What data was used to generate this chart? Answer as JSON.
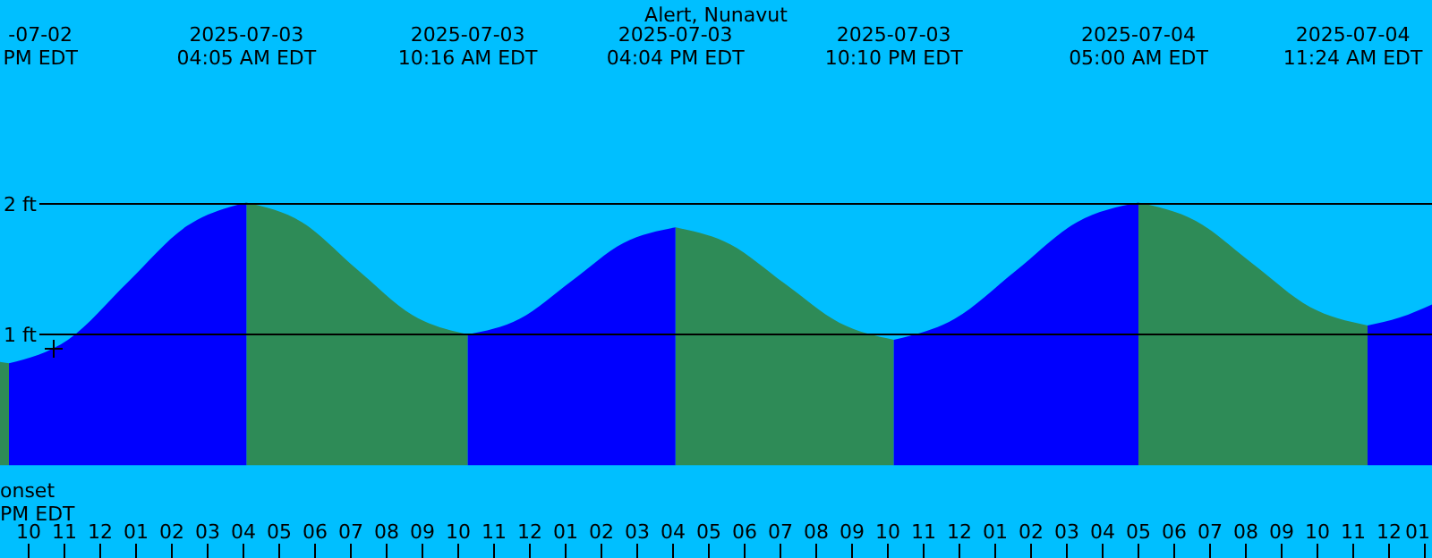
{
  "chart_data": {
    "type": "area",
    "title": "Alert, Nunavut",
    "xlim": [
      "2025-07-02T21:12",
      "2025-07-04T13:12"
    ],
    "ylim": [
      -0.71,
      3.56
    ],
    "yticks": [
      {
        "value": 1,
        "label": "1 ft"
      },
      {
        "value": 2,
        "label": "2 ft"
      }
    ],
    "xticks": [
      {
        "value": "2025-07-02T22:00",
        "label": "10"
      },
      {
        "value": "2025-07-02T23:00",
        "label": "11"
      },
      {
        "value": "2025-07-03T00:00",
        "label": "12"
      },
      {
        "value": "2025-07-03T01:00",
        "label": "01"
      },
      {
        "value": "2025-07-03T02:00",
        "label": "02"
      },
      {
        "value": "2025-07-03T03:00",
        "label": "03"
      },
      {
        "value": "2025-07-03T04:00",
        "label": "04"
      },
      {
        "value": "2025-07-03T05:00",
        "label": "05"
      },
      {
        "value": "2025-07-03T06:00",
        "label": "06"
      },
      {
        "value": "2025-07-03T07:00",
        "label": "07"
      },
      {
        "value": "2025-07-03T08:00",
        "label": "08"
      },
      {
        "value": "2025-07-03T09:00",
        "label": "09"
      },
      {
        "value": "2025-07-03T10:00",
        "label": "10"
      },
      {
        "value": "2025-07-03T11:00",
        "label": "11"
      },
      {
        "value": "2025-07-03T12:00",
        "label": "12"
      },
      {
        "value": "2025-07-03T13:00",
        "label": "01"
      },
      {
        "value": "2025-07-03T14:00",
        "label": "02"
      },
      {
        "value": "2025-07-03T15:00",
        "label": "03"
      },
      {
        "value": "2025-07-03T16:00",
        "label": "04"
      },
      {
        "value": "2025-07-03T17:00",
        "label": "05"
      },
      {
        "value": "2025-07-03T18:00",
        "label": "06"
      },
      {
        "value": "2025-07-03T19:00",
        "label": "07"
      },
      {
        "value": "2025-07-03T20:00",
        "label": "08"
      },
      {
        "value": "2025-07-03T21:00",
        "label": "09"
      },
      {
        "value": "2025-07-03T22:00",
        "label": "10"
      },
      {
        "value": "2025-07-03T23:00",
        "label": "11"
      },
      {
        "value": "2025-07-04T00:00",
        "label": "12"
      },
      {
        "value": "2025-07-04T01:00",
        "label": "01"
      },
      {
        "value": "2025-07-04T02:00",
        "label": "02"
      },
      {
        "value": "2025-07-04T03:00",
        "label": "03"
      },
      {
        "value": "2025-07-04T04:00",
        "label": "04"
      },
      {
        "value": "2025-07-04T05:00",
        "label": "05"
      },
      {
        "value": "2025-07-04T06:00",
        "label": "06"
      },
      {
        "value": "2025-07-04T07:00",
        "label": "07"
      },
      {
        "value": "2025-07-04T08:00",
        "label": "08"
      },
      {
        "value": "2025-07-04T09:00",
        "label": "09"
      },
      {
        "value": "2025-07-04T10:00",
        "label": "10"
      },
      {
        "value": "2025-07-04T11:00",
        "label": "11"
      },
      {
        "value": "2025-07-04T12:00",
        "label": "12"
      },
      {
        "value": "2025-07-04T13:00",
        "label": "01"
      }
    ],
    "grid": "y",
    "series": [
      {
        "color": "#2e8b57",
        "x": [
          "2025-07-02T21:12",
          "2025-07-02T21:27",
          "2025-07-03T01:00",
          "2025-07-03T04:05",
          "2025-07-03T05:38",
          "2025-07-03T07:10",
          "2025-07-03T08:43",
          "2025-07-03T10:16",
          "2025-07-03T13:00",
          "2025-07-03T16:04",
          "2025-07-03T17:36",
          "2025-07-03T19:07",
          "2025-07-03T20:39",
          "2025-07-03T22:10",
          "2025-07-04T01:00",
          "2025-07-04T05:00",
          "2025-07-04T06:36",
          "2025-07-04T08:12",
          "2025-07-04T09:48",
          "2025-07-04T11:24"
        ],
        "values": [
          0.79,
          0.78,
          null,
          2.01,
          1.86,
          1.5,
          1.15,
          1.0,
          null,
          1.82,
          1.69,
          1.39,
          1.09,
          0.96,
          null,
          2.01,
          1.87,
          1.54,
          1.21,
          1.07
        ]
      },
      {
        "color": "#0000ff",
        "x": [
          "2025-07-02T21:27",
          "2025-07-02T23:06",
          "2025-07-03T00:46",
          "2025-07-03T02:25",
          "2025-07-03T04:05",
          "2025-07-03T07:00",
          "2025-07-03T10:16",
          "2025-07-03T11:43",
          "2025-07-03T13:10",
          "2025-07-03T14:37",
          "2025-07-03T16:04",
          "2025-07-03T19:00",
          "2025-07-03T22:10",
          "2025-07-03T23:52",
          "2025-07-04T01:35",
          "2025-07-04T03:17",
          "2025-07-04T05:00",
          "2025-07-04T08:00",
          "2025-07-04T11:24",
          "2025-07-04T12:18",
          "2025-07-04T13:12"
        ],
        "values": [
          0.78,
          0.96,
          1.4,
          1.83,
          2.01,
          null,
          1.0,
          1.12,
          1.41,
          1.7,
          1.82,
          null,
          0.96,
          1.12,
          1.49,
          1.86,
          2.01,
          null,
          1.07,
          1.13,
          1.23
        ]
      }
    ],
    "annotations": [
      "-07-02\nPM EDT",
      "2025-07-03\n04:05 AM EDT",
      "2025-07-03\n10:16 AM EDT",
      "2025-07-03\n04:04 PM EDT",
      "2025-07-03\n10:10 PM EDT",
      "2025-07-04\n05:00 AM EDT",
      "2025-07-04\n11:24 AM EDT",
      "onset\nPM EDT"
    ]
  }
}
